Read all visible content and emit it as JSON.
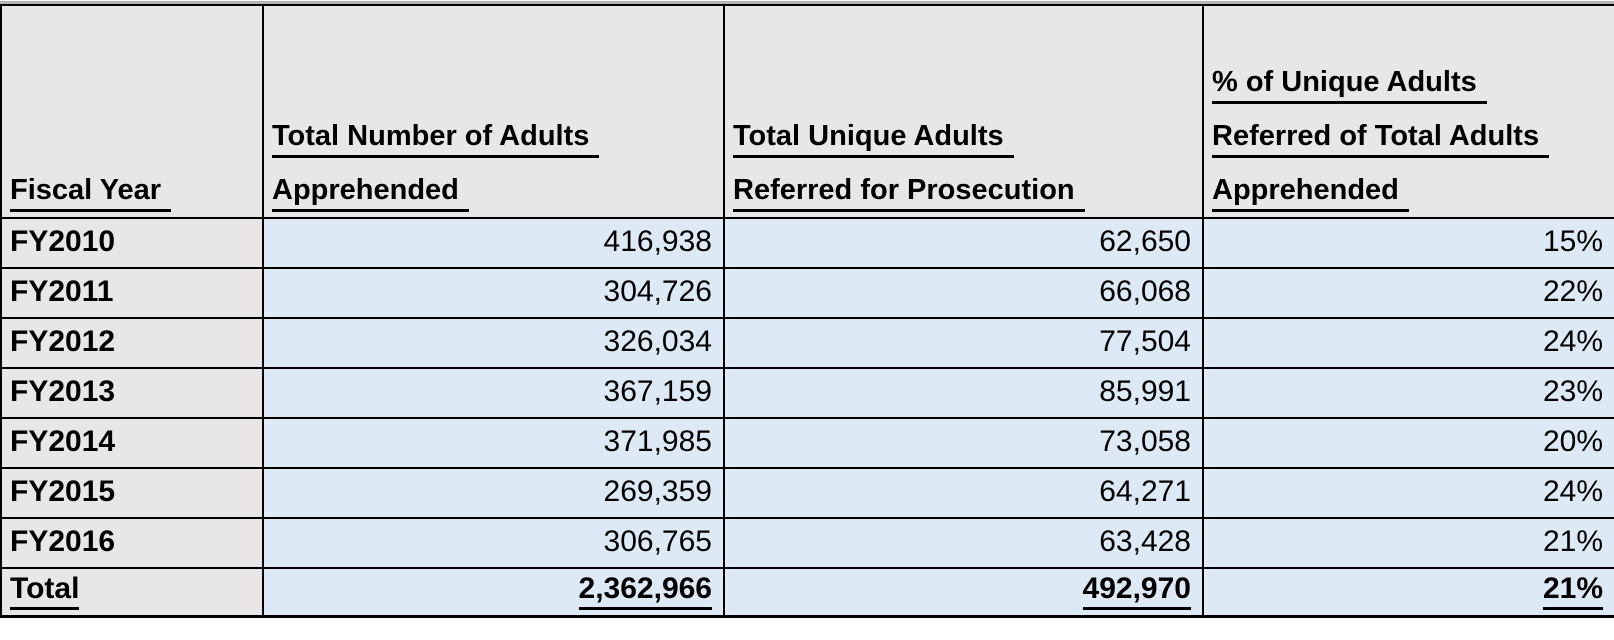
{
  "table": {
    "columns": [
      {
        "label": "Fiscal Year",
        "lines": [
          "Fiscal Year"
        ]
      },
      {
        "label": "Total Number of Adults Apprehended",
        "lines": [
          "Total Number of Adults",
          "Apprehended"
        ]
      },
      {
        "label": "Total Unique Adults Referred for Prosecution",
        "lines": [
          "Total Unique Adults",
          "Referred for Prosecution"
        ]
      },
      {
        "label": "% of Unique Adults Referred of Total Adults Apprehended",
        "lines": [
          "% of Unique Adults",
          "Referred of Total Adults",
          "Apprehended"
        ]
      }
    ],
    "rows": [
      {
        "label": "FY2010",
        "apprehended": "416,938",
        "referred": "62,650",
        "pct": "15%"
      },
      {
        "label": "FY2011",
        "apprehended": "304,726",
        "referred": "66,068",
        "pct": "22%"
      },
      {
        "label": "FY2012",
        "apprehended": "326,034",
        "referred": "77,504",
        "pct": "24%"
      },
      {
        "label": "FY2013",
        "apprehended": "367,159",
        "referred": "85,991",
        "pct": "23%"
      },
      {
        "label": "FY2014",
        "apprehended": "371,985",
        "referred": "73,058",
        "pct": "20%"
      },
      {
        "label": "FY2015",
        "apprehended": "269,359",
        "referred": "64,271",
        "pct": "24%"
      },
      {
        "label": "FY2016",
        "apprehended": "306,765",
        "referred": "63,428",
        "pct": "21%"
      }
    ],
    "total_row": {
      "label": "Total",
      "apprehended": "2,362,966",
      "referred": "492,970",
      "pct": "21%"
    }
  },
  "colors": {
    "header_bg": "#e8e6e6",
    "label_col_bg": "#e8e6e6",
    "data_bg": "#dde9f4",
    "border": "#000000",
    "top_strip": "#b7b4b4",
    "text": "#000000"
  },
  "chart_data": {
    "type": "table",
    "title": "",
    "columns": [
      "Fiscal Year",
      "Total Number of Adults Apprehended",
      "Total Unique Adults Referred for Prosecution",
      "% of Unique Adults Referred of Total Adults Apprehended"
    ],
    "rows": [
      [
        "FY2010",
        416938,
        62650,
        "15%"
      ],
      [
        "FY2011",
        304726,
        66068,
        "22%"
      ],
      [
        "FY2012",
        326034,
        77504,
        "24%"
      ],
      [
        "FY2013",
        367159,
        85991,
        "23%"
      ],
      [
        "FY2014",
        371985,
        73058,
        "20%"
      ],
      [
        "FY2015",
        269359,
        64271,
        "24%"
      ],
      [
        "FY2016",
        306765,
        63428,
        "21%"
      ]
    ],
    "total_row": [
      "Total",
      2362966,
      492970,
      "21%"
    ]
  }
}
